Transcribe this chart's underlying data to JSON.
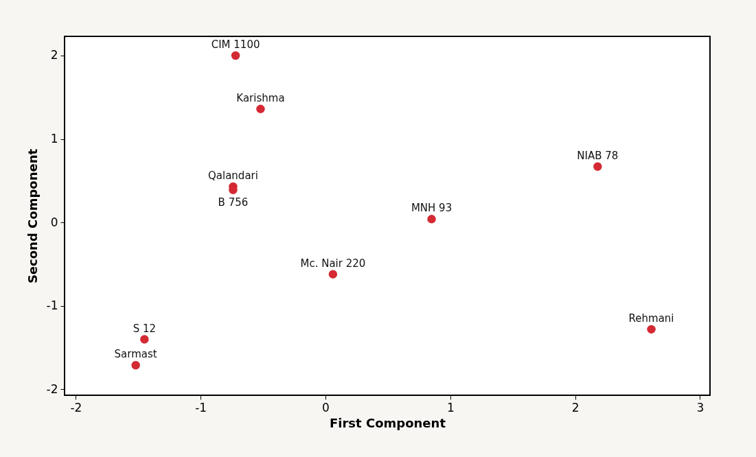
{
  "chart_data": {
    "type": "scatter",
    "xlabel": "First Component",
    "ylabel": "Second Component",
    "x": [
      -0.72,
      -0.52,
      -0.74,
      -0.74,
      0.06,
      -1.45,
      -1.52,
      2.18,
      0.85,
      2.61
    ],
    "series": [
      {
        "color": "#d42a34",
        "values": [
          2.0,
          1.36,
          0.43,
          0.39,
          -0.62,
          -1.4,
          -1.71,
          0.67,
          0.04,
          -1.28
        ]
      }
    ],
    "annotations": [
      {
        "text": "CIM 1100",
        "x": -0.72,
        "y": 2.0
      },
      {
        "text": "Karishma",
        "x": -0.52,
        "y": 1.36
      },
      {
        "text": "Qalandari",
        "x": -0.74,
        "y": 0.43
      },
      {
        "text": "B 756",
        "x": -0.74,
        "y": 0.39
      },
      {
        "text": "Mc. Nair 220",
        "x": 0.06,
        "y": -0.62
      },
      {
        "text": "S 12",
        "x": -1.45,
        "y": -1.4
      },
      {
        "text": "Sarmast",
        "x": -1.52,
        "y": -1.71
      },
      {
        "text": "NIAB 78",
        "x": 2.18,
        "y": 0.67
      },
      {
        "text": "MNH 93",
        "x": 0.85,
        "y": 0.04
      },
      {
        "text": "Rehmani",
        "x": 2.61,
        "y": -1.28
      }
    ],
    "xlim": [
      -2.09,
      3.08
    ],
    "ylim": [
      -2.07,
      2.23
    ],
    "xticks": [
      -2,
      -1,
      0,
      1,
      2,
      3
    ],
    "yticks": [
      -2,
      -1,
      0,
      1,
      2
    ],
    "grid": false,
    "marker": "circle"
  }
}
